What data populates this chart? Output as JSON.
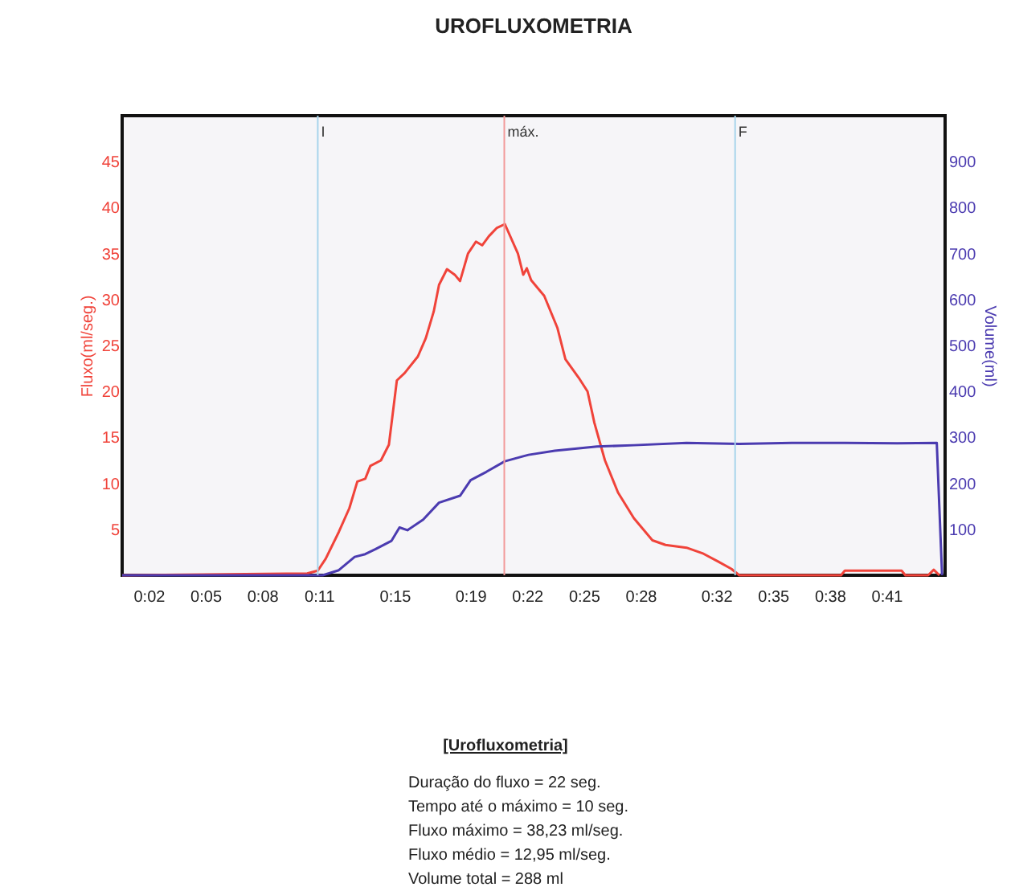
{
  "chart_data": {
    "type": "line",
    "title": "UROFLUXOMETRIA",
    "ylabel": "Fluxo(ml/seg.)",
    "y2label": "Volume(ml)",
    "xlim": [
      0.6,
      44.1
    ],
    "ylim": [
      0,
      50
    ],
    "y2lim": [
      0,
      1000
    ],
    "xticks": [
      {
        "value": 2,
        "label": "0:02"
      },
      {
        "value": 5,
        "label": "0:05"
      },
      {
        "value": 8,
        "label": "0:08"
      },
      {
        "value": 11,
        "label": "0:11"
      },
      {
        "value": 15,
        "label": "0:15"
      },
      {
        "value": 19,
        "label": "0:19"
      },
      {
        "value": 22,
        "label": "0:22"
      },
      {
        "value": 25,
        "label": "0:25"
      },
      {
        "value": 28,
        "label": "0:28"
      },
      {
        "value": 32,
        "label": "0:32"
      },
      {
        "value": 35,
        "label": "0:35"
      },
      {
        "value": 38,
        "label": "0:38"
      },
      {
        "value": 41,
        "label": "0:41"
      }
    ],
    "yticks": [
      5,
      10,
      15,
      20,
      25,
      30,
      35,
      40,
      45
    ],
    "y2ticks": [
      100,
      200,
      300,
      400,
      500,
      600,
      700,
      800,
      900
    ],
    "grid": false,
    "marker": "none",
    "line_style": "solid",
    "series": [
      {
        "color": "#f0433a",
        "x": [
          0.6,
          10.38,
          10.94,
          11.36,
          12.05,
          12.61,
          13.03,
          13.45,
          13.72,
          14.28,
          14.7,
          15.12,
          15.53,
          16.23,
          16.65,
          17.07,
          17.35,
          17.77,
          18.18,
          18.46,
          18.88,
          19.3,
          19.63,
          19.99,
          20.41,
          20.83,
          21.52,
          21.8,
          21.99,
          22.22,
          22.91,
          23.61,
          24.03,
          24.73,
          25.2,
          25.56,
          26.12,
          26.81,
          27.65,
          28.63,
          29.32,
          30.43,
          31.27,
          32.1,
          32.8,
          33.22,
          38.6,
          38.8,
          41.8,
          42.0,
          43.2,
          43.5,
          43.8
        ],
        "values": [
          0,
          0.2,
          0.5,
          1.8,
          4.7,
          7.3,
          10.2,
          10.5,
          11.9,
          12.5,
          14.2,
          21.2,
          22,
          23.8,
          25.8,
          28.7,
          31.6,
          33.3,
          32.7,
          32,
          35,
          36.3,
          35.9,
          36.9,
          37.8,
          38.2,
          35,
          32.7,
          33.4,
          32.1,
          30.4,
          26.9,
          23.5,
          21.5,
          20,
          16.6,
          12.5,
          9,
          6.2,
          3.8,
          3.3,
          3,
          2.4,
          1.5,
          0.7,
          0,
          0,
          0.5,
          0.5,
          0,
          0,
          0.6,
          0
        ]
      },
      {
        "color": "#4b3bb0",
        "axis": "y2",
        "x": [
          0.6,
          11.2,
          12.05,
          12.89,
          13.45,
          14.0,
          14.84,
          15.26,
          15.68,
          16.51,
          17.35,
          18.46,
          19.02,
          19.85,
          20.83,
          21.8,
          22.08,
          23.47,
          25.7,
          27.65,
          30.43,
          33.22,
          36.0,
          38.79,
          41.57,
          43.66,
          43.94
        ],
        "values": [
          0,
          0,
          11,
          40,
          46,
          57,
          75,
          104,
          98,
          121,
          158,
          173,
          207,
          225,
          248,
          259,
          262,
          271,
          280,
          283,
          288,
          286,
          288,
          288,
          287,
          288,
          0
        ]
      }
    ],
    "ref_lines": [
      {
        "axis": "x",
        "value": 10.94,
        "label": "I",
        "color": "#a8d4ec"
      },
      {
        "axis": "x",
        "value": 20.8,
        "label": "máx.",
        "color": "#f29a9a"
      },
      {
        "axis": "x",
        "value": 33.0,
        "label": "F",
        "color": "#a8d4ec"
      }
    ],
    "annotations": [
      "[Urofluxometria]",
      "Duração do fluxo = 22 seg.",
      "Tempo até o máximo = 10 seg.",
      "Fluxo máximo = 38,23 ml/seg.",
      "Fluxo médio = 12,95 ml/seg.",
      "Volume total = 288 ml"
    ]
  }
}
